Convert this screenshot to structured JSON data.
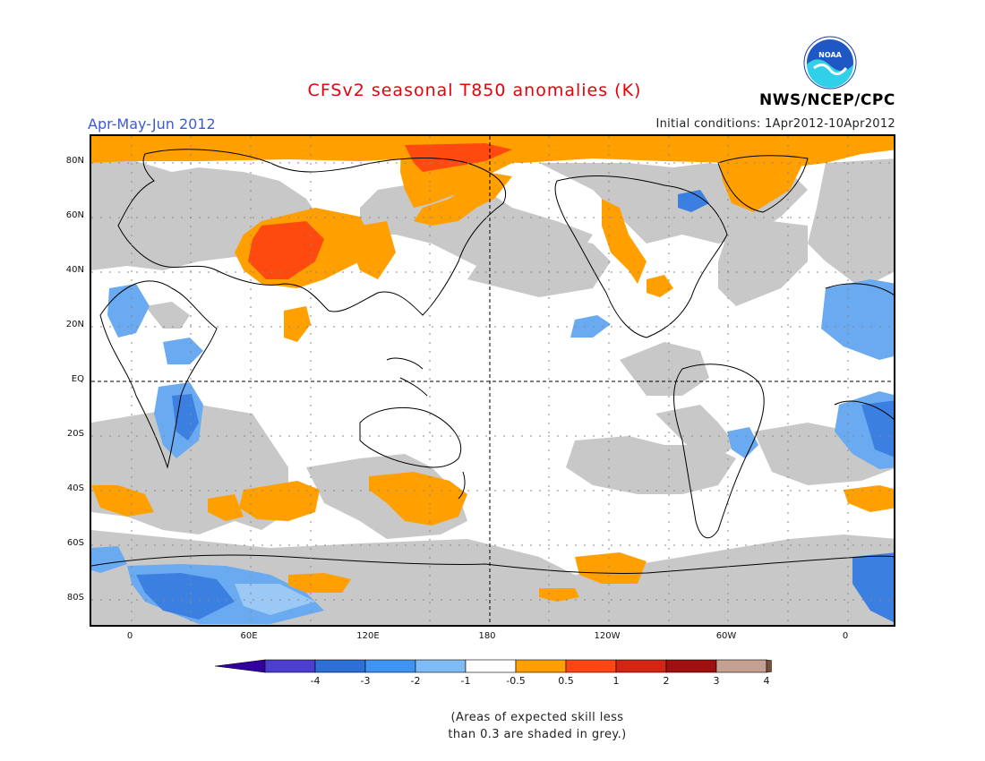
{
  "header": {
    "title": "CFSv2 seasonal T850 anomalies (K)",
    "season": "Apr-May-Jun 2012",
    "initial_conditions": "Initial conditions: 1Apr2012-10Apr2012",
    "agency": "NWS/NCEP/CPC",
    "logo_text": "NOAA",
    "logo_icon": "noaa-logo-icon"
  },
  "map": {
    "projection": "equirectangular, centered 180",
    "lat_labels": [
      "80N",
      "60N",
      "40N",
      "20N",
      "EQ",
      "20S",
      "40S",
      "60S",
      "80S"
    ],
    "lon_labels": [
      "0",
      "60E",
      "120E",
      "180",
      "120W",
      "60W",
      "0"
    ],
    "colors": {
      "skill_grey": "#c8c8c8",
      "neg4": "#3d2ba8",
      "neg3": "#4050d0",
      "neg2": "#3b7fe0",
      "neg1": "#6aaaf0",
      "neg05": "#9cc8f6",
      "neutral": "#ffffff",
      "pos05": "#ff9f00",
      "pos1": "#ff4a0f",
      "pos2": "#e0140a",
      "pos3": "#a01010",
      "pos4": "#c8a08e"
    }
  },
  "colorbar": {
    "labels": [
      "-4",
      "-3",
      "-2",
      "-1",
      "-0.5",
      "0.5",
      "1",
      "2",
      "3",
      "4"
    ],
    "colors": [
      "#3300a0",
      "#4c3fcf",
      "#2f6fd8",
      "#3f93f2",
      "#7fbcf5",
      "#ffffff",
      "#ff9f00",
      "#ff4512",
      "#d42514",
      "#a01010",
      "#c4a090",
      "#7a4f3e"
    ]
  },
  "footnote": "(Areas of expected skill less\nthan 0.3 are shaded in grey.)"
}
